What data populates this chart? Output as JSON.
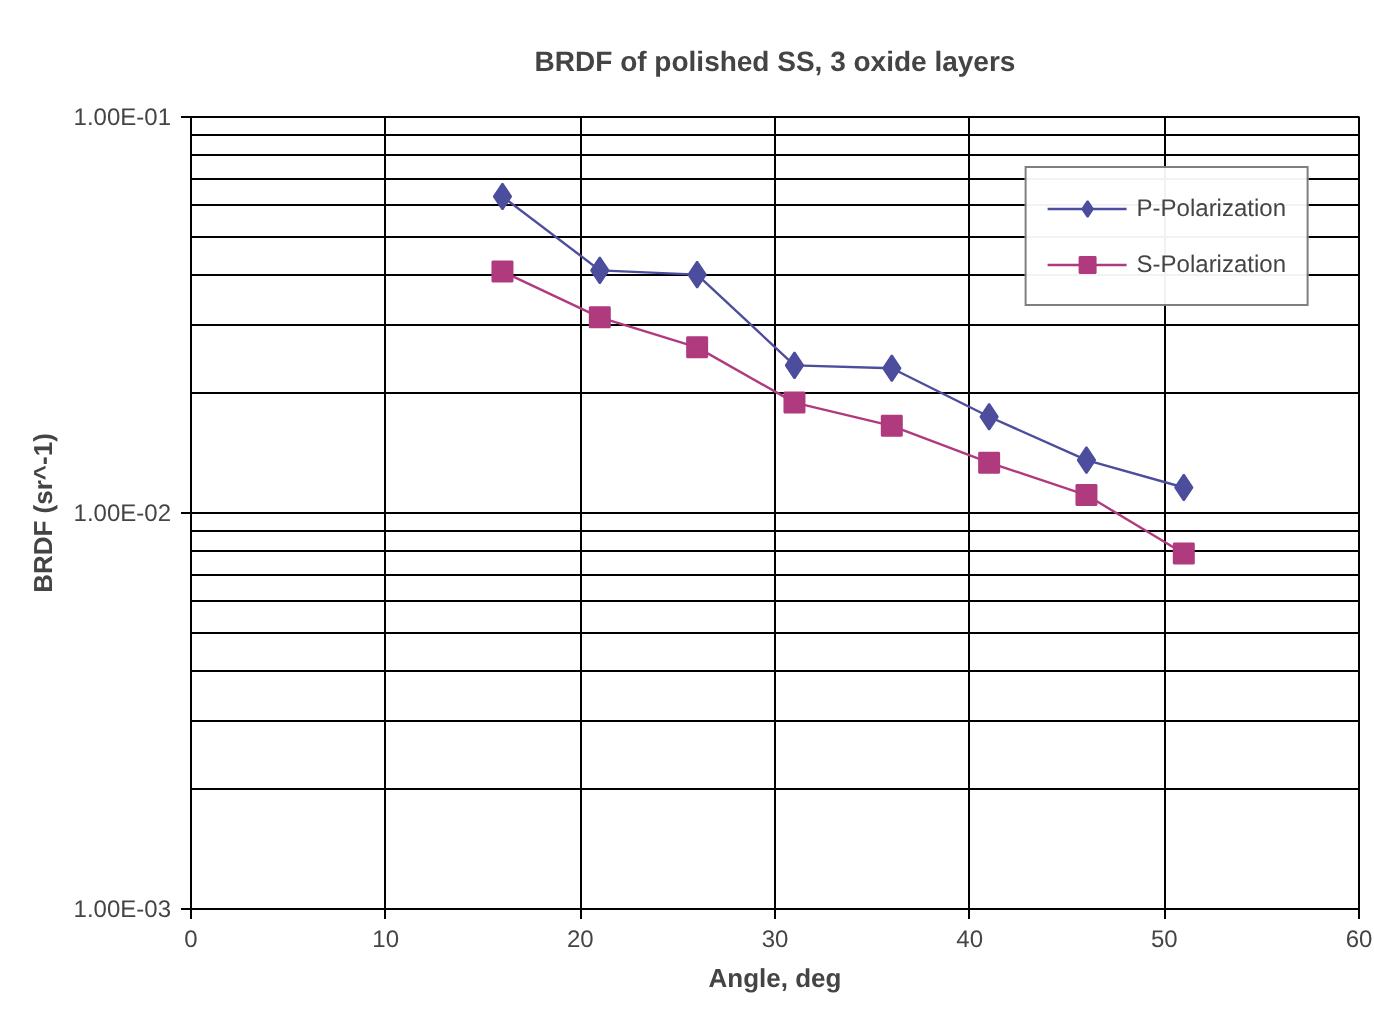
{
  "chart_data": {
    "type": "line",
    "title": "BRDF of polished SS, 3 oxide layers",
    "xlabel": "Angle, deg",
    "ylabel": "BRDF (sr^-1)",
    "x": [
      16,
      21,
      26,
      31,
      36,
      41,
      46,
      51
    ],
    "series": [
      {
        "name": "P-Polarization",
        "color": "#4d4d9e",
        "marker": "diamond",
        "values": [
          0.063,
          0.041,
          0.04,
          0.0236,
          0.0232,
          0.0175,
          0.0136,
          0.0116
        ]
      },
      {
        "name": "S-Polarization",
        "color": "#b03a7e",
        "marker": "square",
        "values": [
          0.0407,
          0.0312,
          0.0262,
          0.019,
          0.0166,
          0.0134,
          0.0111,
          0.0079
        ]
      }
    ],
    "xlim": [
      0,
      60
    ],
    "xticks": [
      0,
      10,
      20,
      30,
      40,
      50,
      60
    ],
    "ylim": [
      0.001,
      0.1
    ],
    "yticks": [
      {
        "value": 0.001,
        "label": "1.00E-03"
      },
      {
        "value": 0.01,
        "label": "1.00E-02"
      },
      {
        "value": 0.1,
        "label": "1.00E-01"
      }
    ],
    "log": "y",
    "grid": true,
    "legend": "top right",
    "line_style": "solid"
  }
}
